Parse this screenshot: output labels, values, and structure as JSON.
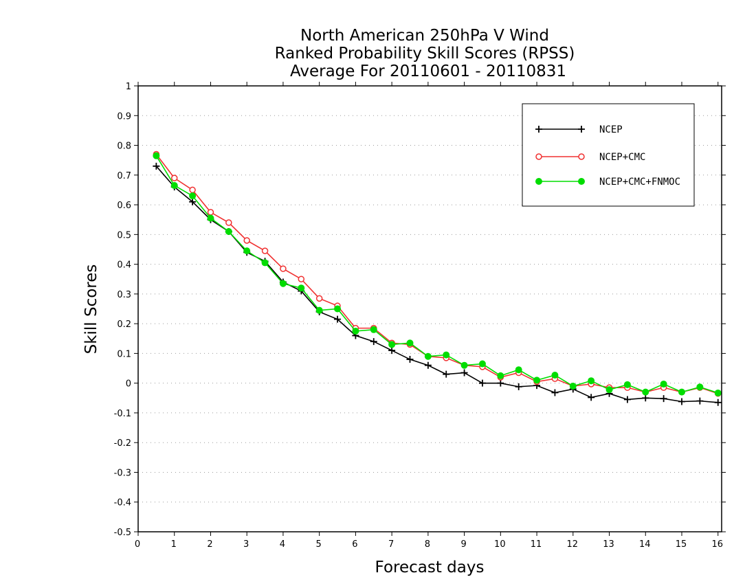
{
  "chart_data": {
    "type": "line",
    "title_lines": [
      "North American 250hPa V Wind",
      "Ranked Probability Skill Scores (RPSS)",
      "Average For 20110601 - 20110831"
    ],
    "xlabel": "Forecast days",
    "ylabel": "Skill Scores",
    "xlim": [
      0,
      16.1
    ],
    "ylim": [
      -0.5,
      1
    ],
    "xticks": [
      "0",
      "1",
      "2",
      "3",
      "4",
      "5",
      "6",
      "7",
      "8",
      "9",
      "10",
      "11",
      "12",
      "13",
      "14",
      "15",
      "16"
    ],
    "yticks": [
      "1",
      "0.9",
      "0.8",
      "0.7",
      "0.6",
      "0.5",
      "0.4",
      "0.3",
      "0.2",
      "0.1",
      "0",
      "-0.1",
      "-0.2",
      "-0.3",
      "-0.4",
      "-0.5"
    ],
    "grid": "horizontal dotted",
    "legend_position": "top-right",
    "x": [
      0.5,
      1,
      1.5,
      2,
      2.5,
      3,
      3.5,
      4,
      4.5,
      5,
      5.5,
      6,
      6.5,
      7,
      7.5,
      8,
      8.5,
      9,
      9.5,
      10,
      10.5,
      11,
      11.5,
      12,
      12.5,
      13,
      13.5,
      14,
      14.5,
      15,
      15.5,
      16
    ],
    "series": [
      {
        "name": "NCEP",
        "color": "#000000",
        "marker": "plus",
        "values": [
          0.73,
          0.66,
          0.61,
          0.55,
          0.51,
          0.44,
          0.41,
          0.34,
          0.31,
          0.24,
          0.215,
          0.16,
          0.14,
          0.11,
          0.08,
          0.06,
          0.03,
          0.035,
          0.0,
          0.0,
          -0.012,
          -0.008,
          -0.032,
          -0.02,
          -0.048,
          -0.035,
          -0.055,
          -0.05,
          -0.052,
          -0.062,
          -0.06,
          -0.065
        ]
      },
      {
        "name": "NCEP+CMC",
        "color": "#f03030",
        "marker": "open-circle",
        "values": [
          0.77,
          0.69,
          0.65,
          0.575,
          0.54,
          0.48,
          0.445,
          0.385,
          0.35,
          0.285,
          0.26,
          0.185,
          0.185,
          0.135,
          0.13,
          0.09,
          0.085,
          0.06,
          0.055,
          0.02,
          0.035,
          0.005,
          0.015,
          -0.01,
          -0.003,
          -0.015,
          -0.015,
          -0.03,
          -0.015,
          -0.03,
          -0.015,
          -0.035
        ]
      },
      {
        "name": "NCEP+CMC+FNMOC",
        "color": "#00dd00",
        "marker": "filled-circle",
        "values": [
          0.765,
          0.665,
          0.63,
          0.555,
          0.51,
          0.445,
          0.405,
          0.335,
          0.32,
          0.245,
          0.25,
          0.175,
          0.18,
          0.13,
          0.135,
          0.09,
          0.095,
          0.06,
          0.065,
          0.025,
          0.045,
          0.01,
          0.027,
          -0.01,
          0.008,
          -0.022,
          -0.005,
          -0.03,
          -0.003,
          -0.03,
          -0.013,
          -0.033
        ]
      }
    ]
  }
}
